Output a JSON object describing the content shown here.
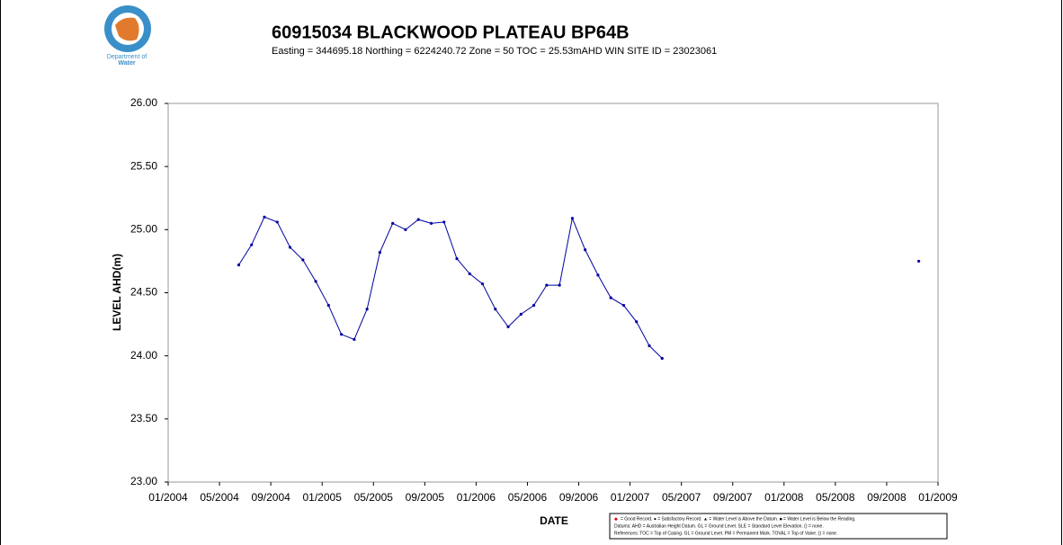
{
  "logo": {
    "lines": [
      "Department of",
      "Water"
    ]
  },
  "chart_data": {
    "type": "line",
    "title": "60915034 BLACKWOOD PLATEAU BP64B",
    "subtitle": "Easting = 344695.18 Northing = 6224240.72  Zone = 50 TOC = 25.53mAHD  WIN SITE ID = 23023061",
    "x_label": "DATE",
    "y_label": "LEVEL AHD(m)",
    "x": [
      "2004-06",
      "2004-07",
      "2004-08",
      "2004-09",
      "2004-10",
      "2004-11",
      "2004-12",
      "2005-01",
      "2005-02",
      "2005-03",
      "2005-04",
      "2005-05",
      "2005-06",
      "2005-07",
      "2005-08",
      "2005-09",
      "2005-10",
      "2005-11",
      "2005-12",
      "2006-01",
      "2006-02",
      "2006-03",
      "2006-04",
      "2006-05",
      "2006-06",
      "2006-07",
      "2006-08",
      "2006-09",
      "2006-10",
      "2006-11",
      "2006-12",
      "2007-01",
      "2007-02",
      "2007-03",
      "2007-04",
      "2008-11"
    ],
    "series": [
      {
        "name": "LEVEL AHD(m)",
        "color": "#0000a0",
        "values": [
          24.72,
          24.88,
          25.1,
          25.06,
          24.86,
          24.76,
          24.59,
          24.4,
          24.17,
          24.13,
          24.37,
          24.82,
          25.05,
          25.0,
          25.08,
          25.05,
          25.06,
          24.77,
          24.65,
          24.57,
          24.37,
          24.23,
          24.33,
          24.4,
          24.56,
          24.56,
          25.09,
          24.84,
          24.64,
          24.46,
          24.4,
          24.27,
          24.08,
          23.98,
          null,
          24.75
        ]
      }
    ],
    "xlim": [
      "2004-01",
      "2009-01"
    ],
    "xticks": [
      {
        "value": "2004-01",
        "label": "01/2004"
      },
      {
        "value": "2004-05",
        "label": "05/2004"
      },
      {
        "value": "2004-09",
        "label": "09/2004"
      },
      {
        "value": "2005-01",
        "label": "01/2005"
      },
      {
        "value": "2005-05",
        "label": "05/2005"
      },
      {
        "value": "2005-09",
        "label": "09/2005"
      },
      {
        "value": "2006-01",
        "label": "01/2006"
      },
      {
        "value": "2006-05",
        "label": "05/2006"
      },
      {
        "value": "2006-09",
        "label": "09/2006"
      },
      {
        "value": "2007-01",
        "label": "01/2007"
      },
      {
        "value": "2007-05",
        "label": "05/2007"
      },
      {
        "value": "2007-09",
        "label": "09/2007"
      },
      {
        "value": "2008-01",
        "label": "01/2008"
      },
      {
        "value": "2008-05",
        "label": "05/2008"
      },
      {
        "value": "2008-09",
        "label": "09/2008"
      },
      {
        "value": "2009-01",
        "label": "01/2009"
      }
    ],
    "ylim": [
      23,
      26
    ],
    "yticks": [
      {
        "value": 23,
        "label": "23.00"
      },
      {
        "value": 23.5,
        "label": "23.50"
      },
      {
        "value": 24,
        "label": "24.00"
      },
      {
        "value": 24.5,
        "label": "24.50"
      },
      {
        "value": 25,
        "label": "25.00"
      },
      {
        "value": 25.5,
        "label": "25.50"
      },
      {
        "value": 26,
        "label": "26.00"
      }
    ],
    "legend_lines": [
      "= Good Record. ● = Satisfactory Record. ▲ = Water Level is Above the Datum. ■ = Water Level is Below the Reading.",
      "Datums: AHD = Australian Height Datum. GL = Ground Level. SLE = Standard Level Elevation. () = none.",
      "References: TOC = Top of Casing. GL = Ground Level. PM = Permanent Mark. TOVAL = Top of Valve. () = none."
    ]
  }
}
